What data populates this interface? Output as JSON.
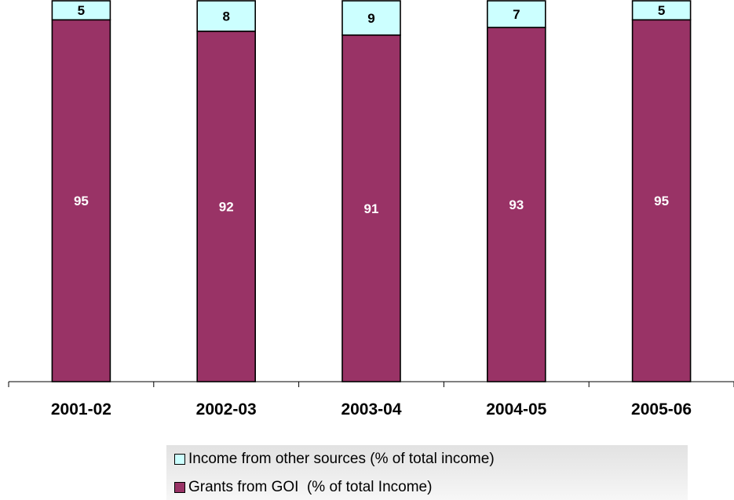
{
  "chart_data": {
    "type": "bar",
    "stacked": true,
    "categories": [
      "2001-02",
      "2002-03",
      "2003-04",
      "2004-05",
      "2005-06"
    ],
    "series": [
      {
        "name": "Grants from GOI  (% of total Income)",
        "values": [
          95,
          92,
          91,
          93,
          95
        ],
        "color": "#993366",
        "label_color": "#ffffff"
      },
      {
        "name": "Income from other sources (% of total income)",
        "values": [
          5,
          8,
          9,
          7,
          5
        ],
        "color": "#ccffff",
        "label_color": "#000000"
      }
    ],
    "ylim": [
      0,
      100
    ],
    "grid": false,
    "legend_position": "bottom"
  }
}
